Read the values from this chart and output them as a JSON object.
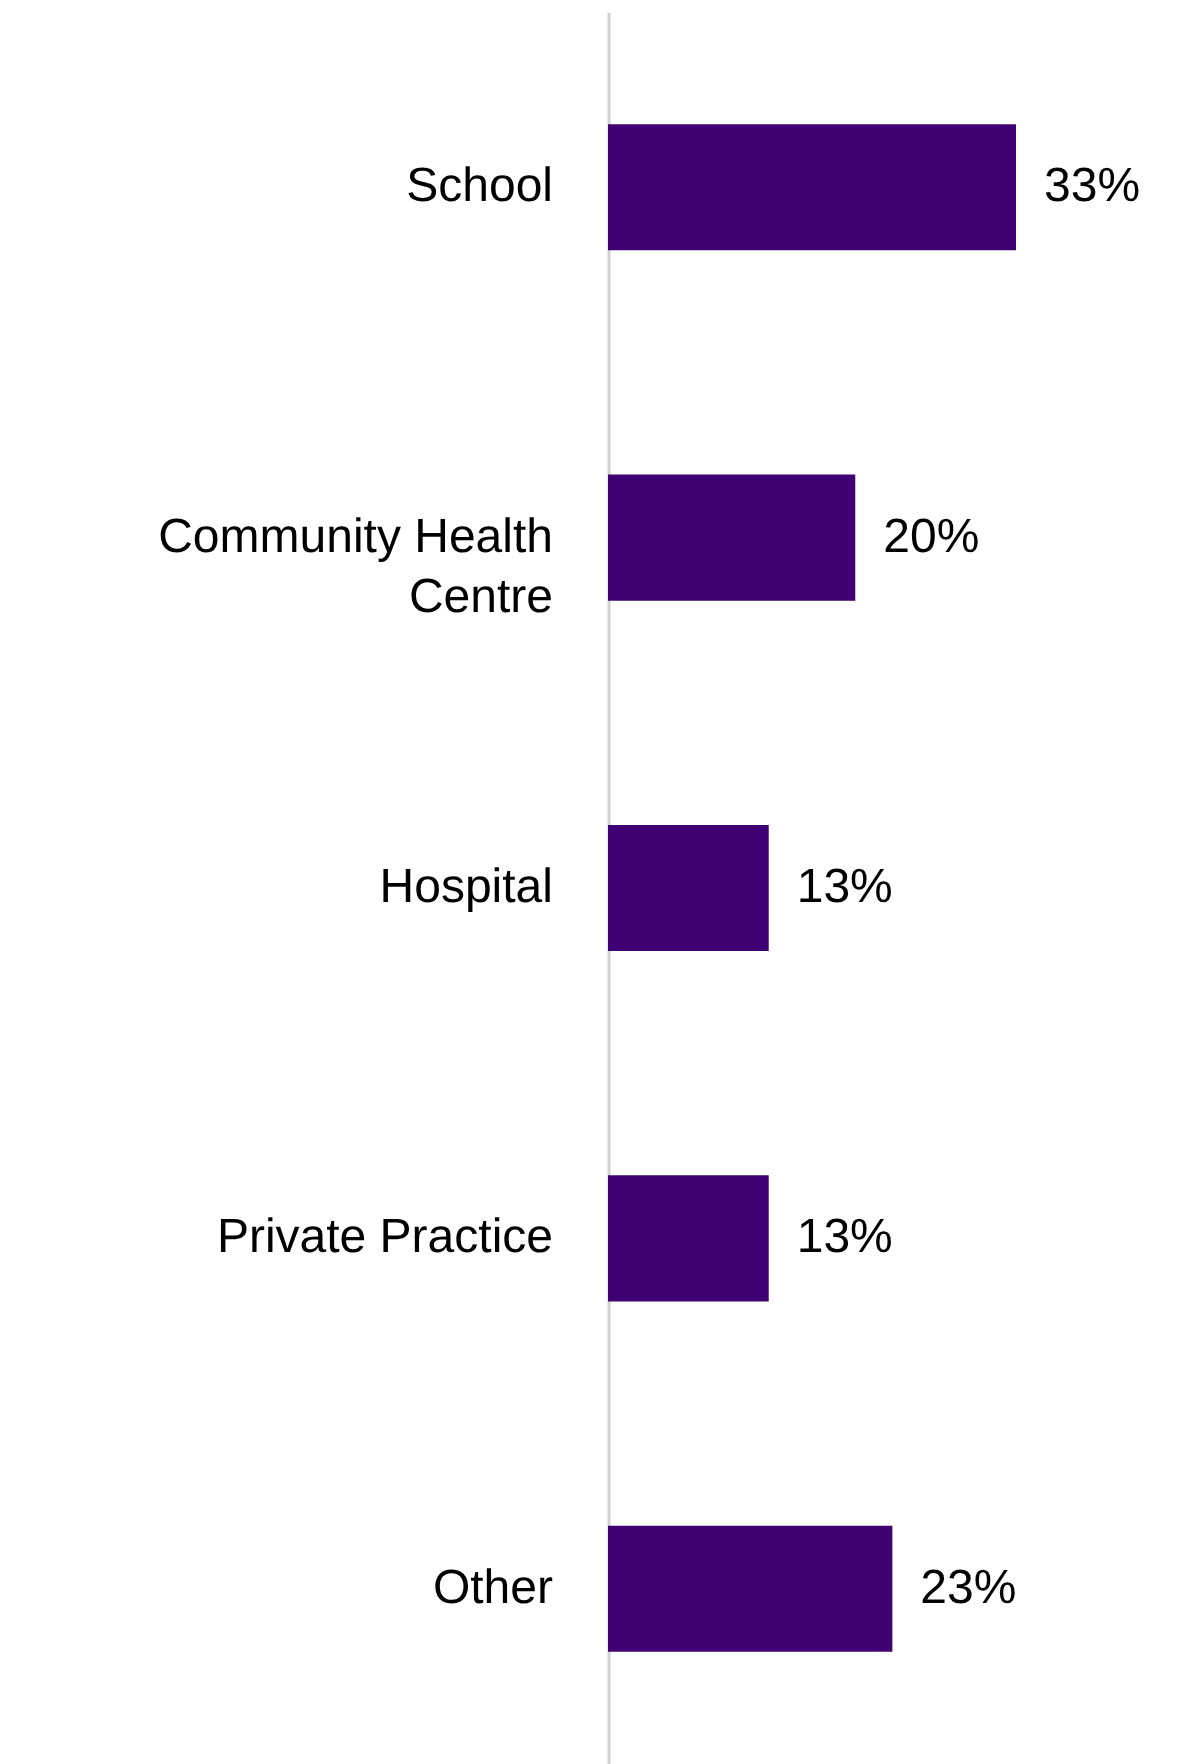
{
  "chart_data": {
    "type": "bar",
    "orientation": "horizontal",
    "categories": [
      "School",
      "Community Health Centre",
      "Hospital",
      "Private Practice",
      "Other"
    ],
    "values": [
      33,
      20,
      13,
      13,
      23
    ],
    "color": "#3f0071",
    "data_labels": true,
    "value_labels": [
      "33%",
      "20%",
      "13%",
      "13%",
      "23%"
    ]
  }
}
